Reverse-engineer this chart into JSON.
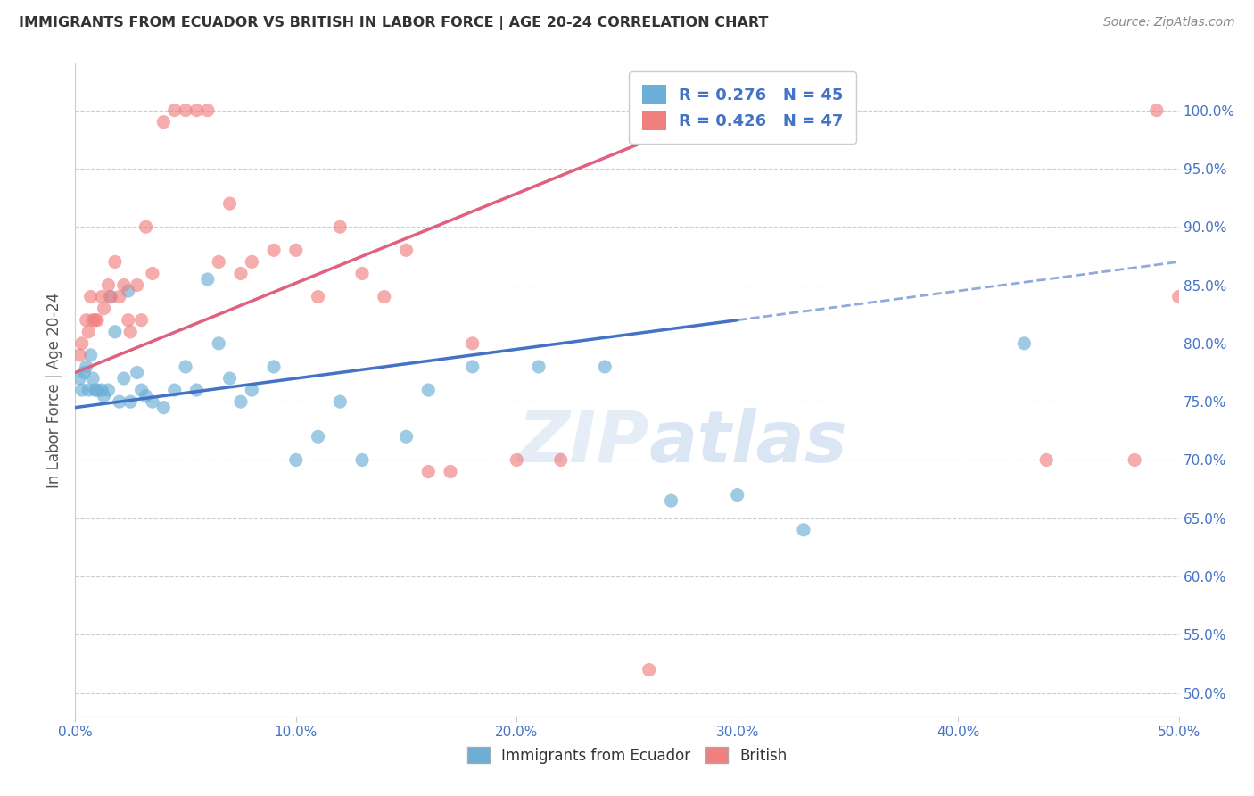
{
  "title": "IMMIGRANTS FROM ECUADOR VS BRITISH IN LABOR FORCE | AGE 20-24 CORRELATION CHART",
  "source": "Source: ZipAtlas.com",
  "xlabel": "",
  "ylabel": "In Labor Force | Age 20-24",
  "xlim": [
    0.0,
    0.5
  ],
  "ylim": [
    0.48,
    1.04
  ],
  "x_ticks": [
    0.0,
    0.1,
    0.2,
    0.3,
    0.4,
    0.5
  ],
  "x_tick_labels": [
    "0.0%",
    "10.0%",
    "20.0%",
    "30.0%",
    "40.0%",
    "50.0%"
  ],
  "y_ticks_right": [
    0.5,
    0.55,
    0.6,
    0.65,
    0.7,
    0.75,
    0.8,
    0.85,
    0.9,
    0.95,
    1.0
  ],
  "y_tick_labels_right": [
    "50.0%",
    "55.0%",
    "60.0%",
    "65.0%",
    "70.0%",
    "75.0%",
    "80.0%",
    "85.0%",
    "90.0%",
    "95.0%",
    "100.0%"
  ],
  "ecuador_color": "#6baed6",
  "british_color": "#f08080",
  "ecuador_line_color": "#4472c4",
  "british_line_color": "#e06080",
  "ecuador_R": 0.276,
  "ecuador_N": 45,
  "british_R": 0.426,
  "british_N": 47,
  "watermark": "ZIPatlas",
  "ecuador_line_x0": 0.0,
  "ecuador_line_y0": 0.745,
  "ecuador_line_x1": 0.3,
  "ecuador_line_y1": 0.82,
  "ecuador_line_ext_x1": 0.5,
  "ecuador_line_ext_y1": 0.87,
  "british_line_x0": 0.0,
  "british_line_y0": 0.775,
  "british_line_x1": 0.28,
  "british_line_y1": 0.99,
  "ecuador_points_x": [
    0.002,
    0.003,
    0.004,
    0.005,
    0.006,
    0.007,
    0.008,
    0.009,
    0.01,
    0.012,
    0.013,
    0.015,
    0.016,
    0.018,
    0.02,
    0.022,
    0.024,
    0.025,
    0.028,
    0.03,
    0.032,
    0.035,
    0.04,
    0.045,
    0.05,
    0.055,
    0.06,
    0.065,
    0.07,
    0.075,
    0.08,
    0.09,
    0.1,
    0.11,
    0.12,
    0.13,
    0.15,
    0.16,
    0.18,
    0.21,
    0.24,
    0.27,
    0.3,
    0.33,
    0.43
  ],
  "ecuador_points_y": [
    0.77,
    0.76,
    0.775,
    0.78,
    0.76,
    0.79,
    0.77,
    0.76,
    0.76,
    0.76,
    0.755,
    0.76,
    0.84,
    0.81,
    0.75,
    0.77,
    0.845,
    0.75,
    0.775,
    0.76,
    0.755,
    0.75,
    0.745,
    0.76,
    0.78,
    0.76,
    0.855,
    0.8,
    0.77,
    0.75,
    0.76,
    0.78,
    0.7,
    0.72,
    0.75,
    0.7,
    0.72,
    0.76,
    0.78,
    0.78,
    0.78,
    0.665,
    0.67,
    0.64,
    0.8
  ],
  "british_points_x": [
    0.002,
    0.003,
    0.005,
    0.006,
    0.007,
    0.008,
    0.009,
    0.01,
    0.012,
    0.013,
    0.015,
    0.016,
    0.018,
    0.02,
    0.022,
    0.024,
    0.025,
    0.028,
    0.03,
    0.032,
    0.035,
    0.04,
    0.045,
    0.05,
    0.055,
    0.06,
    0.065,
    0.07,
    0.075,
    0.08,
    0.09,
    0.1,
    0.11,
    0.12,
    0.13,
    0.14,
    0.15,
    0.16,
    0.17,
    0.18,
    0.2,
    0.22,
    0.26,
    0.44,
    0.48,
    0.49,
    0.5
  ],
  "british_points_y": [
    0.79,
    0.8,
    0.82,
    0.81,
    0.84,
    0.82,
    0.82,
    0.82,
    0.84,
    0.83,
    0.85,
    0.84,
    0.87,
    0.84,
    0.85,
    0.82,
    0.81,
    0.85,
    0.82,
    0.9,
    0.86,
    0.99,
    1.0,
    1.0,
    1.0,
    1.0,
    0.87,
    0.92,
    0.86,
    0.87,
    0.88,
    0.88,
    0.84,
    0.9,
    0.86,
    0.84,
    0.88,
    0.69,
    0.69,
    0.8,
    0.7,
    0.7,
    0.52,
    0.7,
    0.7,
    1.0,
    0.84
  ]
}
